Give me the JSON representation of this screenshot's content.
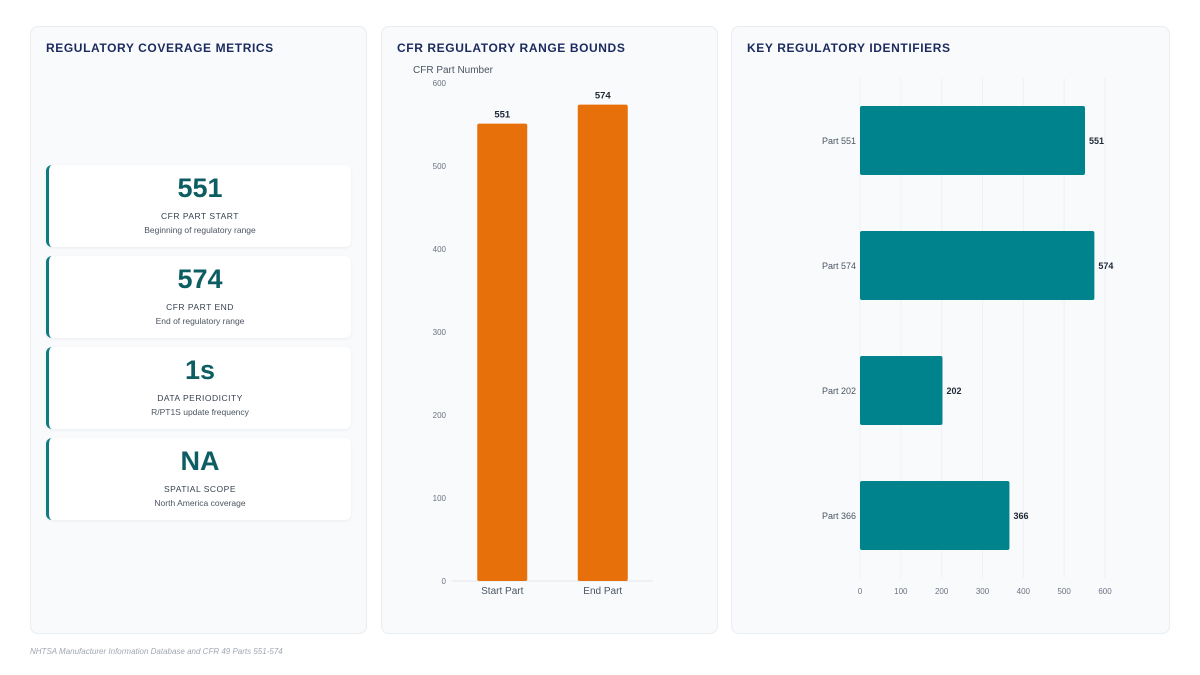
{
  "metrics_panel": {
    "title": "REGULATORY COVERAGE METRICS",
    "cards": [
      {
        "value": "551",
        "label": "CFR PART START",
        "sub": "Beginning of regulatory range"
      },
      {
        "value": "574",
        "label": "CFR PART END",
        "sub": "End of regulatory range"
      },
      {
        "value": "1s",
        "label": "DATA PERIODICITY",
        "sub": "R/PT1S update frequency"
      },
      {
        "value": "NA",
        "label": "SPATIAL SCOPE",
        "sub": "North America coverage"
      }
    ]
  },
  "chart_data": [
    {
      "type": "bar",
      "orientation": "vertical",
      "title": "CFR REGULATORY RANGE BOUNDS",
      "ylabel": "CFR Part Number",
      "xlabel": "",
      "categories": [
        "Start Part",
        "End Part"
      ],
      "values": [
        551,
        574
      ],
      "data_labels": [
        "551",
        "574"
      ],
      "ylim": [
        0,
        600
      ],
      "yticks": [
        0,
        100,
        200,
        300,
        400,
        500,
        600
      ],
      "ytick_labels": [
        "0",
        "100",
        "200",
        "300",
        "400",
        "500",
        "600"
      ],
      "color": "#e8700a",
      "grid": false
    },
    {
      "type": "bar",
      "orientation": "horizontal",
      "title": "KEY REGULATORY IDENTIFIERS",
      "xlabel": "",
      "ylabel": "",
      "categories": [
        "Part 551",
        "Part 574",
        "Part 202",
        "Part 366"
      ],
      "values": [
        551,
        574,
        202,
        366
      ],
      "data_labels": [
        "551",
        "574",
        "202",
        "366"
      ],
      "xlim": [
        0,
        600
      ],
      "xticks": [
        0,
        100,
        200,
        300,
        400,
        500,
        600
      ],
      "xtick_labels": [
        "0",
        "100",
        "200",
        "300",
        "400",
        "500",
        "600"
      ],
      "color": "#00838d",
      "grid": true
    }
  ],
  "footer": "NHTSA Manufacturer Information Database and CFR 49 Parts 551-574"
}
